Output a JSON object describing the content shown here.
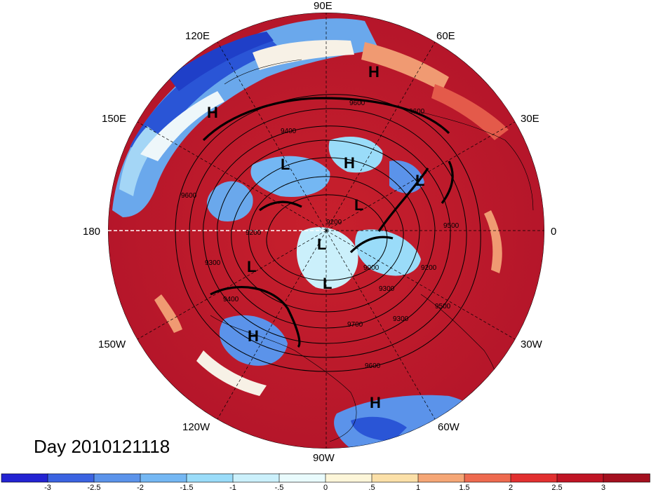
{
  "title": "Day 2010121118",
  "longitude_labels": {
    "e90": "90E",
    "e60": "60E",
    "e30": "30E",
    "zero": "0",
    "w30": "30W",
    "w60": "60W",
    "w90": "90W",
    "w120": "120W",
    "w150": "150W",
    "l180": "180",
    "e150": "150E",
    "e120": "120E"
  },
  "pressure_centers": [
    {
      "label": "H",
      "kind": "high"
    },
    {
      "label": "H",
      "kind": "high"
    },
    {
      "label": "H",
      "kind": "high"
    },
    {
      "label": "H",
      "kind": "high"
    },
    {
      "label": "H",
      "kind": "high"
    },
    {
      "label": "L",
      "kind": "low"
    },
    {
      "label": "L",
      "kind": "low"
    },
    {
      "label": "L",
      "kind": "low"
    },
    {
      "label": "L",
      "kind": "low"
    },
    {
      "label": "L",
      "kind": "low"
    },
    {
      "label": "L",
      "kind": "low"
    }
  ],
  "contour_labels": [
    "9600",
    "9600",
    "9500",
    "9600",
    "9300",
    "9200",
    "9400",
    "9200",
    "9000",
    "9300",
    "9500",
    "9600",
    "9700",
    "9400",
    "9200",
    "9300"
  ],
  "colorbar": {
    "ticks": [
      "-3",
      "-2.5",
      "-2",
      "-1.5",
      "-1",
      "-.5",
      "0",
      ".5",
      "1",
      "1.5",
      "2",
      "2.5",
      "3"
    ],
    "colors": [
      "#2323d2",
      "#3b63e1",
      "#5b93ea",
      "#74b7f3",
      "#9adcf9",
      "#cbf0fb",
      "#e9fbfd",
      "#fdf6d9",
      "#fbe0a8",
      "#f5a676",
      "#ee6a4f",
      "#e23030",
      "#c01424",
      "#a4101f"
    ]
  },
  "map_colors": {
    "warm_dark": "#b8182a",
    "warm": "#d8333a",
    "warm_light": "#f09a72",
    "cool": "#6aa8ec",
    "cool_dark": "#2a55d6",
    "neutral": "#f7f1e6"
  }
}
